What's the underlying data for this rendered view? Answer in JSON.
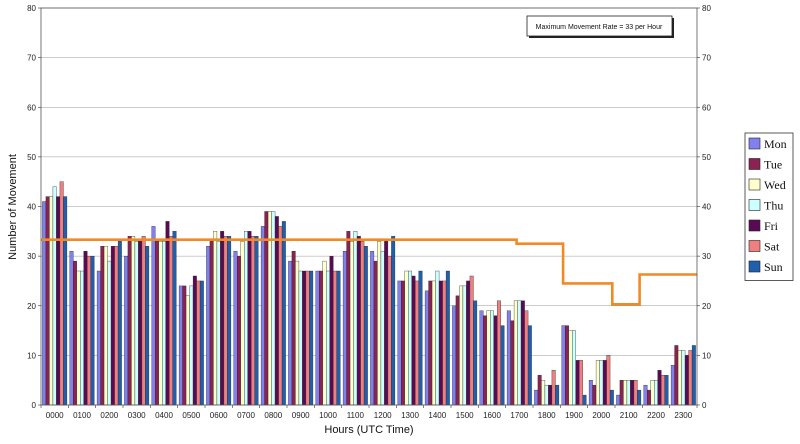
{
  "chart_data": {
    "type": "bar",
    "title": "",
    "xlabel": "Hours (UTC Time)",
    "ylabel": "Number of Movement",
    "ylim": [
      0,
      80
    ],
    "yticks": [
      0,
      10,
      20,
      30,
      40,
      50,
      60,
      70,
      80
    ],
    "secondary_yticks": [
      0,
      10,
      20,
      30,
      40,
      50,
      60,
      70,
      80
    ],
    "grid": "horizontal",
    "legend_position": "right",
    "categories": [
      "0000",
      "0100",
      "0200",
      "0300",
      "0400",
      "0500",
      "0600",
      "0700",
      "0800",
      "0900",
      "1000",
      "1100",
      "1200",
      "1300",
      "1400",
      "1500",
      "1600",
      "1700",
      "1800",
      "1900",
      "2000",
      "2100",
      "2200",
      "2300"
    ],
    "series": [
      {
        "name": "Mon",
        "color": "#8080ee",
        "values": [
          41,
          31,
          27,
          30,
          36,
          24,
          32,
          31,
          36,
          29,
          27,
          31,
          31,
          25,
          23,
          20,
          19,
          19,
          3,
          16,
          5,
          2,
          4,
          8
        ]
      },
      {
        "name": "Tue",
        "color": "#8b2252",
        "values": [
          42,
          29,
          32,
          34,
          33,
          24,
          33,
          30,
          39,
          31,
          27,
          35,
          29,
          25,
          25,
          22,
          18,
          17,
          6,
          16,
          4,
          5,
          3,
          12
        ]
      },
      {
        "name": "Wed",
        "color": "#ffffcc",
        "values": [
          42,
          27,
          32,
          34,
          33,
          22,
          35,
          33,
          39,
          29,
          29,
          33,
          33,
          27,
          25,
          24,
          19,
          21,
          5,
          15,
          9,
          5,
          5,
          11
        ]
      },
      {
        "name": "Thu",
        "color": "#ccffff",
        "values": [
          44,
          27,
          29,
          33,
          33,
          24,
          33,
          35,
          39,
          27,
          27,
          35,
          31,
          27,
          27,
          24,
          19,
          21,
          4,
          15,
          9,
          5,
          5,
          11
        ]
      },
      {
        "name": "Fri",
        "color": "#5a0a55",
        "values": [
          42,
          31,
          32,
          33,
          37,
          26,
          35,
          35,
          38,
          27,
          30,
          34,
          33,
          26,
          25,
          25,
          18,
          21,
          4,
          9,
          9,
          5,
          7,
          10
        ]
      },
      {
        "name": "Sat",
        "color": "#f08080",
        "values": [
          45,
          30,
          32,
          34,
          34,
          25,
          34,
          34,
          36,
          27,
          27,
          33,
          30,
          25,
          25,
          26,
          21,
          19,
          7,
          9,
          10,
          5,
          6,
          11
        ]
      },
      {
        "name": "Sun",
        "color": "#1e5fae",
        "values": [
          42,
          30,
          33,
          32,
          35,
          25,
          34,
          34,
          37,
          27,
          27,
          32,
          34,
          27,
          27,
          21,
          16,
          16,
          4,
          2,
          3,
          3,
          6,
          12
        ]
      }
    ],
    "capacity_line": {
      "label": "Maximum Movement Rate = 33 per Hour",
      "color": "#f08a24",
      "x": [
        0,
        17.4,
        17.4,
        19.1,
        19.1,
        20.9,
        20.9,
        21.9,
        21.9,
        29.7,
        29.7,
        30.7
      ],
      "y": [
        33.3,
        33.3,
        32.5,
        32.5,
        24.5,
        24.5,
        20.3,
        20.3,
        26.3,
        26.3,
        26.3,
        26.3
      ],
      "note": ""
    }
  },
  "legend": {
    "items": [
      "Mon",
      "Tue",
      "Wed",
      "Thu",
      "Fri",
      "Sat",
      "Sun"
    ]
  },
  "annotation": {
    "text": "Maximum Movement Rate = 33 per Hour"
  }
}
